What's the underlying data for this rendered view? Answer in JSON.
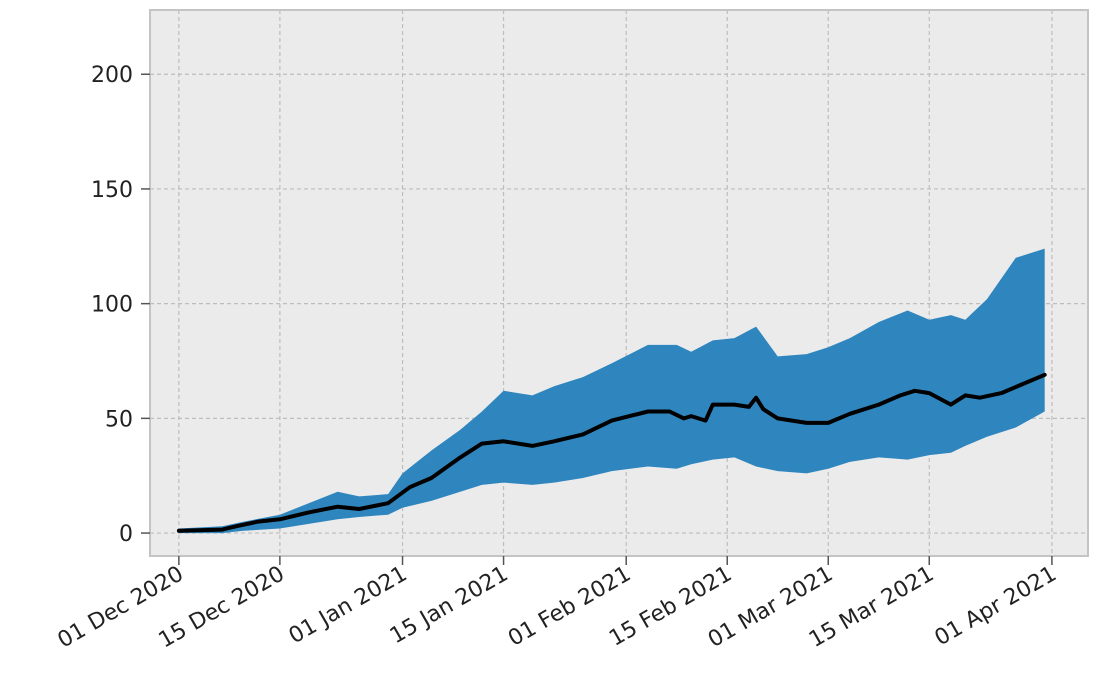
{
  "chart_data": {
    "type": "line",
    "title": "",
    "xlabel": "",
    "ylabel": "",
    "grid": true,
    "colors": {
      "background": "#ebebeb",
      "band": "#2f86bf",
      "line": "#000000",
      "grid": "#bdbdbd",
      "frame": "#c4c4c4"
    },
    "x_axis": {
      "type": "date",
      "range": [
        "2020-11-27",
        "2021-04-06"
      ],
      "ticks": [
        {
          "date": "2020-12-01",
          "label": "01 Dec 2020"
        },
        {
          "date": "2020-12-15",
          "label": "15 Dec 2020"
        },
        {
          "date": "2021-01-01",
          "label": "01 Jan 2021"
        },
        {
          "date": "2021-01-15",
          "label": "15 Jan 2021"
        },
        {
          "date": "2021-02-01",
          "label": "01 Feb 2021"
        },
        {
          "date": "2021-02-15",
          "label": "15 Feb 2021"
        },
        {
          "date": "2021-03-01",
          "label": "01 Mar 2021"
        },
        {
          "date": "2021-03-15",
          "label": "15 Mar 2021"
        },
        {
          "date": "2021-04-01",
          "label": "01 Apr 2021"
        }
      ]
    },
    "y_axis": {
      "range": [
        -10,
        228
      ],
      "ticks": [
        {
          "value": 0,
          "label": "0"
        },
        {
          "value": 50,
          "label": "50"
        },
        {
          "value": 100,
          "label": "100"
        },
        {
          "value": 150,
          "label": "150"
        },
        {
          "value": 200,
          "label": "200"
        }
      ]
    },
    "series": [
      {
        "type": "line",
        "x": [
          "2020-12-01",
          "2020-12-07",
          "2020-12-09",
          "2020-12-12",
          "2020-12-15",
          "2020-12-19",
          "2020-12-23",
          "2020-12-26",
          "2020-12-30",
          "2021-01-02",
          "2021-01-05",
          "2021-01-09",
          "2021-01-12",
          "2021-01-15",
          "2021-01-19",
          "2021-01-22",
          "2021-01-26",
          "2021-01-30",
          "2021-02-04",
          "2021-02-07",
          "2021-02-09",
          "2021-02-10",
          "2021-02-12",
          "2021-02-13",
          "2021-02-16",
          "2021-02-18",
          "2021-02-19",
          "2021-02-20",
          "2021-02-22",
          "2021-02-26",
          "2021-03-01",
          "2021-03-04",
          "2021-03-08",
          "2021-03-11",
          "2021-03-13",
          "2021-03-15",
          "2021-03-18",
          "2021-03-20",
          "2021-03-22",
          "2021-03-25",
          "2021-03-28",
          "2021-03-31"
        ],
        "values": [
          1,
          1.5,
          3,
          5,
          6,
          9,
          11.5,
          10.5,
          13,
          20,
          24,
          33,
          39,
          40,
          38,
          40,
          43,
          49,
          53,
          53,
          50,
          51,
          49,
          56,
          56,
          55,
          59,
          54,
          50,
          48,
          48,
          52,
          56,
          60,
          62,
          61,
          56,
          60,
          59,
          61,
          65,
          69
        ]
      },
      {
        "type": "band",
        "x": [
          "2020-12-01",
          "2020-12-07",
          "2020-12-10",
          "2020-12-15",
          "2020-12-19",
          "2020-12-23",
          "2020-12-26",
          "2020-12-30",
          "2021-01-01",
          "2021-01-05",
          "2021-01-09",
          "2021-01-12",
          "2021-01-15",
          "2021-01-19",
          "2021-01-22",
          "2021-01-26",
          "2021-01-30",
          "2021-02-04",
          "2021-02-08",
          "2021-02-10",
          "2021-02-13",
          "2021-02-16",
          "2021-02-19",
          "2021-02-22",
          "2021-02-26",
          "2021-03-01",
          "2021-03-04",
          "2021-03-08",
          "2021-03-12",
          "2021-03-15",
          "2021-03-18",
          "2021-03-20",
          "2021-03-23",
          "2021-03-27",
          "2021-03-31"
        ],
        "upper": [
          2,
          3,
          5,
          8,
          13,
          18,
          16,
          17,
          26,
          36,
          45,
          53,
          62,
          60,
          64,
          68,
          74,
          82,
          82,
          79,
          84,
          85,
          90,
          77,
          78,
          81,
          85,
          92,
          97,
          93,
          95,
          93,
          102,
          120,
          124
        ],
        "lower": [
          0,
          0,
          1,
          2,
          4,
          6,
          7,
          8,
          11,
          14,
          18,
          21,
          22,
          21,
          22,
          24,
          27,
          29,
          28,
          30,
          32,
          33,
          29,
          27,
          26,
          28,
          31,
          33,
          32,
          34,
          35,
          38,
          42,
          46,
          53
        ]
      }
    ]
  }
}
